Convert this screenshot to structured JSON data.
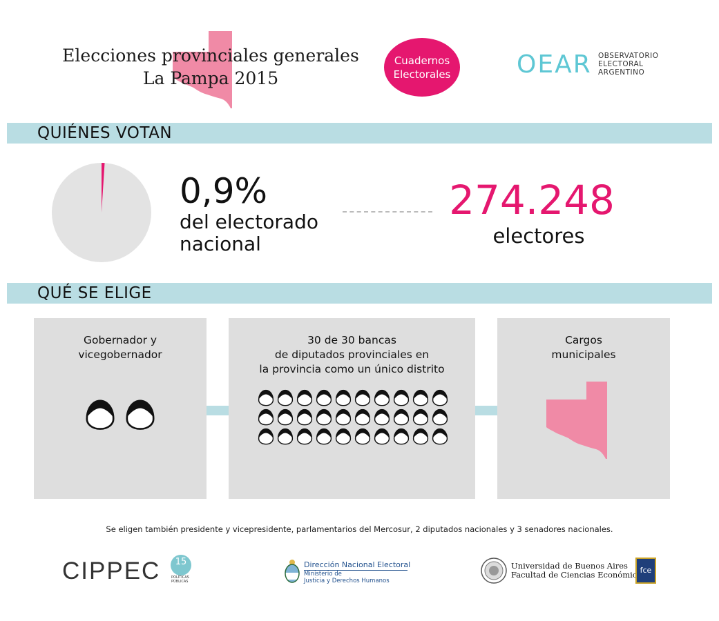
{
  "header": {
    "title_line1": "Elecciones provinciales generales",
    "title_line2": "La Pampa 2015",
    "badge_line1": "Cuadernos",
    "badge_line2": "Electorales",
    "oear_mark": "OEAR",
    "oear_line1": "OBSERVATORIO",
    "oear_line2": "ELECTORAL",
    "oear_line3": "ARGENTINO"
  },
  "who_votes": {
    "heading": "QUIÉNES VOTAN",
    "percent": "0,9%",
    "percent_desc_line1": "del electorado",
    "percent_desc_line2": "nacional",
    "percent_value": 0.009,
    "voters": "274.248",
    "voters_label": "electores"
  },
  "what_elected": {
    "heading": "QUÉ SE ELIGE",
    "card1_line1": "Gobernador y",
    "card1_line2": "vicegobernador",
    "card1_icon_count": 2,
    "card2_line1": "30 de 30 bancas",
    "card2_line2": "de diputados provinciales en",
    "card2_line3": "la provincia como un único distrito",
    "card2_icon_count": 30,
    "card3_line1": "Cargos",
    "card3_line2": "municipales"
  },
  "footnote": "Se eligen también presidente y vicepresidente, parlamentarios del Mercosur, 2 diputados nacionales y 3 senadores nacionales.",
  "footer": {
    "cippec": "CIPPEC",
    "cippec_years": "15",
    "cippec_sub1": "POLÍTICAS",
    "cippec_sub2": "PÚBLICAS",
    "dne_title": "Dirección Nacional Electoral",
    "dne_sub1": "Ministerio de",
    "dne_sub2": "Justicia y Derechos Humanos",
    "uba_line1": "Universidad de Buenos Aires",
    "uba_line2": "Facultad de Ciencias Económicas",
    "fce": "fce"
  },
  "colors": {
    "accent_pink": "#e5176f",
    "map_pink": "#f08aa6",
    "section_blue": "#b9dde3",
    "card_grey": "#dedede",
    "pie_grey": "#e3e3e3"
  },
  "icons": [
    "la-pampa-map-icon",
    "person-head-icon",
    "pie-chart-icon",
    "argentina-seal-icon",
    "uba-seal-icon"
  ]
}
